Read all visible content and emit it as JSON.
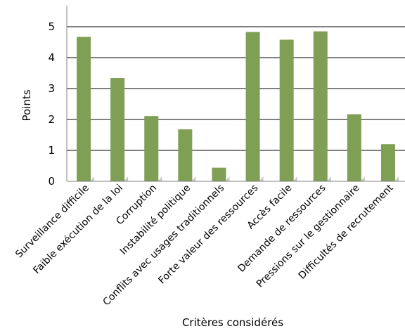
{
  "chart_data": {
    "type": "bar",
    "title": "",
    "xlabel": "Critères considérés",
    "ylabel": "Points",
    "ylim": [
      0,
      5
    ],
    "yticks": [
      "0",
      "1",
      "2",
      "3",
      "4",
      "5"
    ],
    "grid": true,
    "legend": "none",
    "categories": [
      "Surveillance difficile",
      "Faible exécution de la loi",
      "Corruption",
      "Instabilité politique",
      "Conflits avec usages traditionnels",
      "Forte valeur des ressources",
      "Accès facile",
      "Demande de ressources",
      "Pressions sur le gestionnaire",
      "Difficultés de recrutement"
    ],
    "values": [
      4.67,
      3.34,
      2.11,
      1.68,
      0.44,
      4.83,
      4.58,
      4.85,
      2.17,
      1.2
    ],
    "colors": {
      "bar": "#7f9f55",
      "bar_shadow": "#c8c8c8",
      "grid": "#000000",
      "axis": "#808080"
    }
  }
}
